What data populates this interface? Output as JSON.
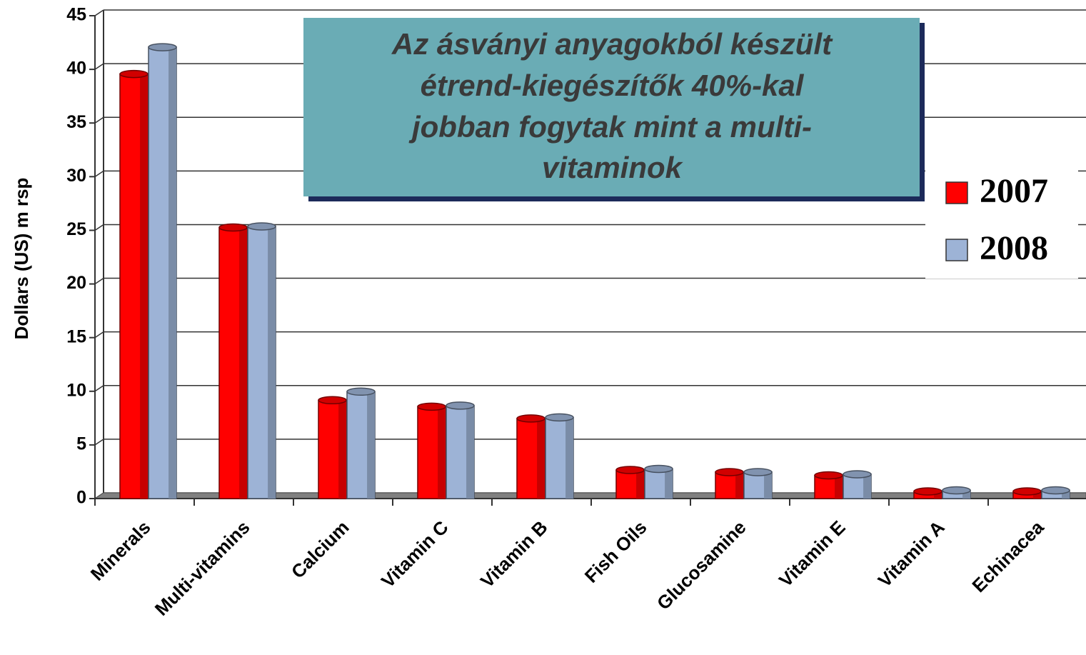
{
  "chart_data": {
    "type": "bar",
    "annotation": [
      "Az ásványi anyagokból készült",
      "étrend-kiegészítők 40%-kal",
      "jobban fogytak mint a multi-",
      "vitaminok"
    ],
    "y_label": "Dollars (US) m rsp",
    "categories": [
      "Minerals",
      "Multi-vitamins",
      "Calcium",
      "Vitamin C",
      "Vitamin B",
      "Fish Oils",
      "Glucosamine",
      "Vitamin E",
      "Vitamin A",
      "Echinacea"
    ],
    "series": [
      {
        "name": "2007",
        "color": "#ff0000",
        "values": [
          39.3,
          25,
          8.9,
          8.3,
          7.2,
          2.4,
          2.2,
          1.9,
          0.4,
          0.4
        ]
      },
      {
        "name": "2008",
        "color": "#9db3d6",
        "values": [
          41.8,
          25.1,
          9.7,
          8.4,
          7.3,
          2.5,
          2.2,
          2.0,
          0.5,
          0.5
        ]
      }
    ],
    "ylim": [
      0,
      45
    ],
    "yticks": [
      0,
      5,
      10,
      15,
      20,
      25,
      30,
      35,
      40,
      45
    ],
    "grid": true
  }
}
